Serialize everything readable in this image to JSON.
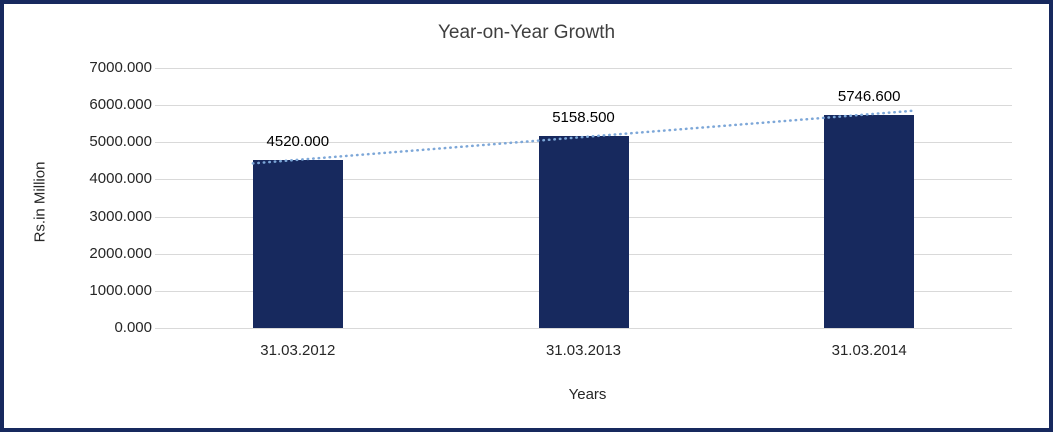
{
  "chart_data": {
    "type": "bar",
    "title": "Year-on-Year Growth",
    "xlabel": "Years",
    "ylabel": "Rs.in Million",
    "categories": [
      "31.03.2012",
      "31.03.2013",
      "31.03.2014"
    ],
    "values": [
      4520.0,
      5158.5,
      5746.6
    ],
    "value_labels": [
      "4520.000",
      "5158.500",
      "5746.600"
    ],
    "ylim": [
      0,
      7000
    ],
    "ytick_step": 1000,
    "ytick_labels": [
      "0.000",
      "1000.000",
      "2000.000",
      "3000.000",
      "4000.000",
      "5000.000",
      "6000.000",
      "7000.000"
    ],
    "grid": "horizontal",
    "legend": "none",
    "trendline": "linear-dotted",
    "colors": {
      "bar": "#17295e",
      "border": "#17295e",
      "gridline": "#d9d9d9",
      "trendline": "#7da7d8",
      "title_text": "#3f3f3f",
      "tick_text": "#262626"
    }
  }
}
